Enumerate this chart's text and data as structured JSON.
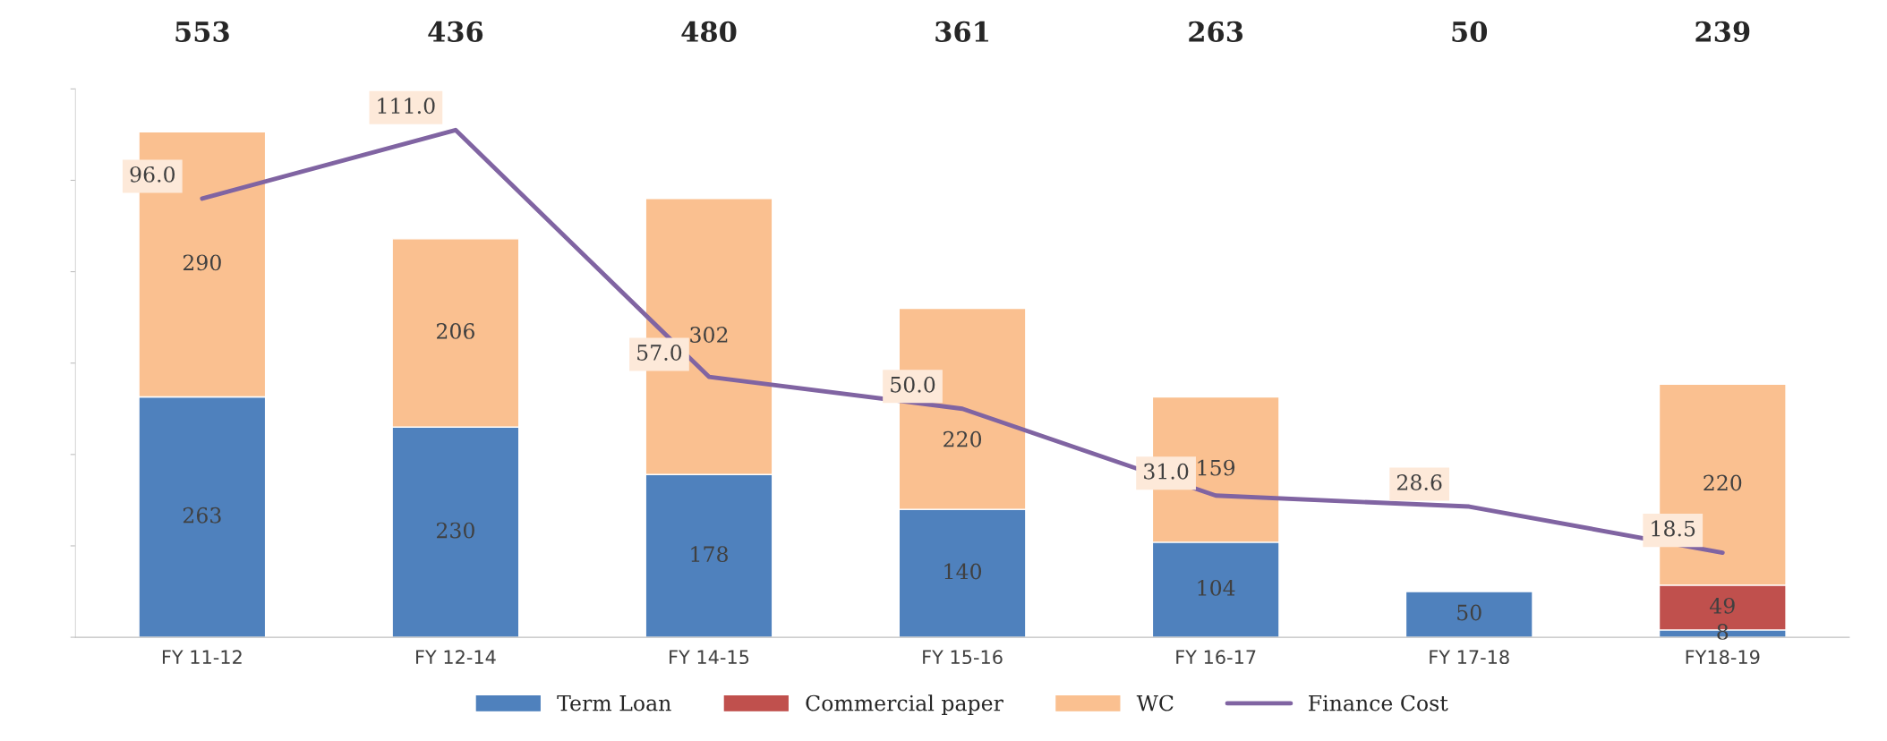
{
  "chart_data": {
    "type": "bar",
    "stacked": true,
    "categories": [
      "FY 11-12",
      "FY 12-14",
      "FY 14-15",
      "FY 15-16",
      "FY 16-17",
      "FY 17-18",
      "FY18-19"
    ],
    "series": [
      {
        "name": "Term Loan",
        "color": "#4f81bd",
        "values": [
          263,
          230,
          178,
          140,
          104,
          50,
          8
        ]
      },
      {
        "name": "Commercial paper",
        "color": "#c0504d",
        "values": [
          null,
          null,
          null,
          null,
          null,
          null,
          49
        ]
      },
      {
        "name": "WC",
        "color": "#fac090",
        "values": [
          290,
          206,
          302,
          220,
          159,
          null,
          220
        ]
      },
      {
        "name": "Finance Cost",
        "type": "line",
        "axis": "y2",
        "color": "#8064a2",
        "values": [
          96.0,
          111.0,
          57.0,
          50.0,
          31.0,
          28.6,
          18.5
        ],
        "value_labels": [
          "96.0",
          "111.0",
          "57.0",
          "50.0",
          "31.0",
          "28.6",
          "18.5"
        ]
      }
    ],
    "annotations": [
      "553",
      "436",
      "480",
      "361",
      "263",
      "50",
      "239"
    ],
    "data_labels": true,
    "ylim": [
      0,
      600
    ],
    "yticks": [
      {
        "value": 0,
        "label": null
      },
      {
        "value": 100,
        "label": null
      },
      {
        "value": 200,
        "label": null
      },
      {
        "value": 300,
        "label": null
      },
      {
        "value": 400,
        "label": null
      },
      {
        "value": 500,
        "label": null
      },
      {
        "value": 600,
        "label": null
      }
    ],
    "y2lim": [
      0,
      120
    ],
    "tick_labels": "x",
    "grid": false,
    "legend": "bottom"
  }
}
